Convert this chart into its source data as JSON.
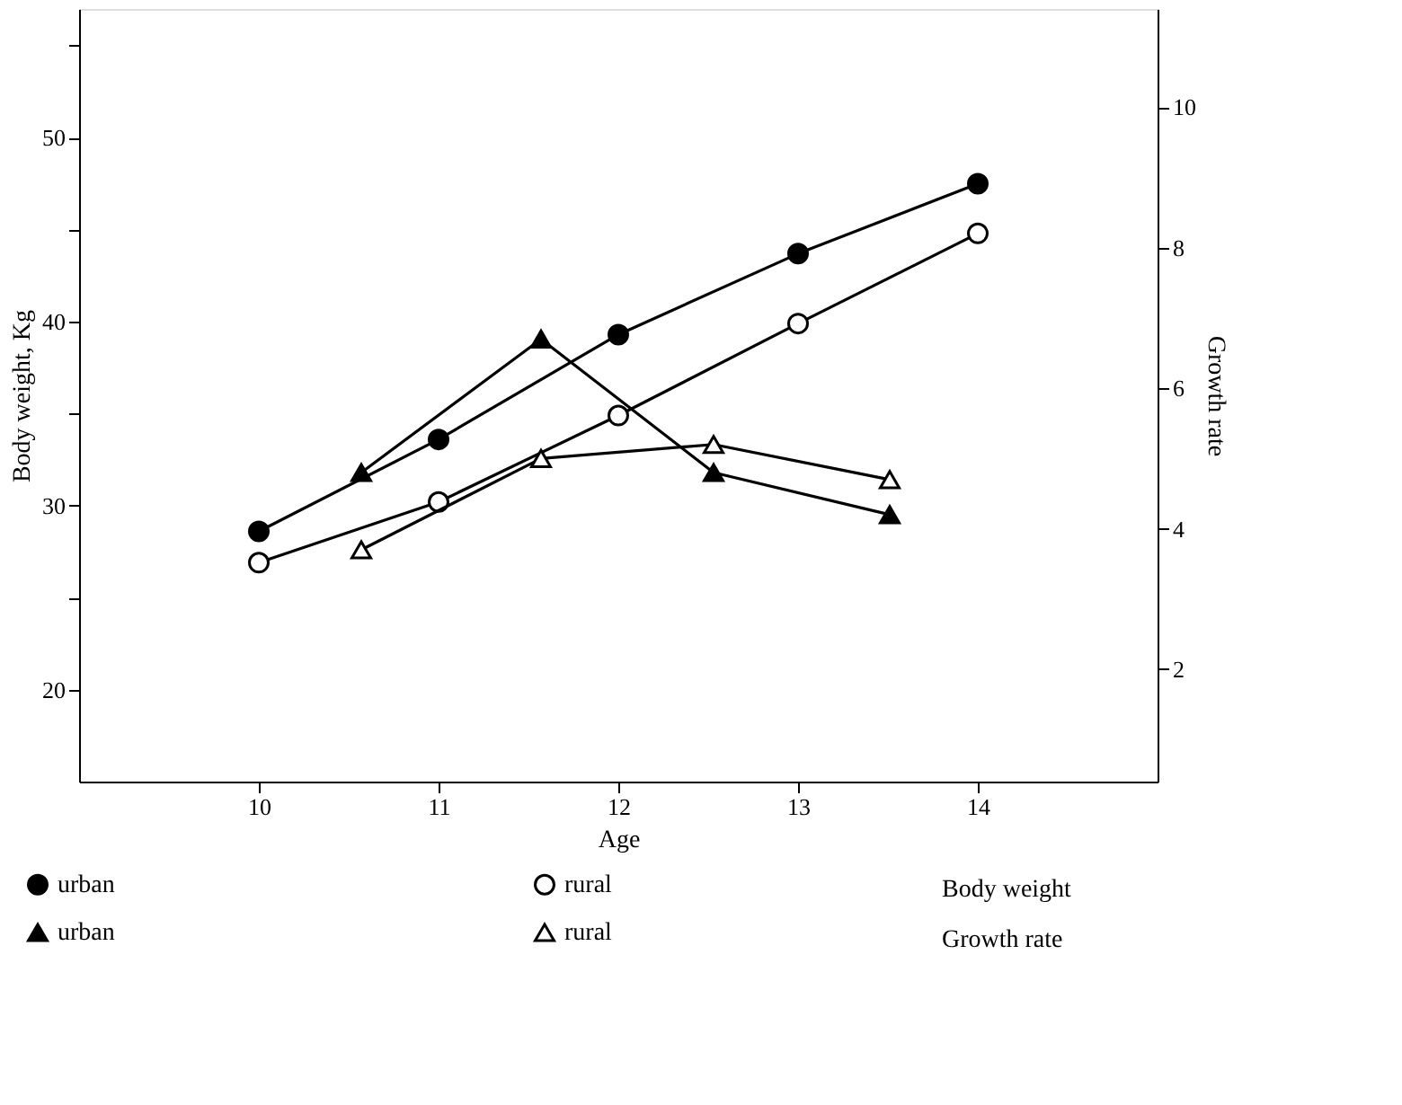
{
  "chart_data": {
    "type": "line",
    "xlabel": "Age",
    "ylabel": "Body weight, Kg",
    "y2label": "Growth rate",
    "x": [
      10,
      11,
      12,
      13,
      14
    ],
    "xlim": [
      9,
      15
    ],
    "xticks": [
      10,
      11,
      12,
      13,
      14
    ],
    "ylim": [
      15,
      57
    ],
    "yticks": [
      20,
      {
        "value": 25,
        "label": null
      },
      30,
      {
        "value": 35,
        "label": null
      },
      40,
      {
        "value": 45,
        "label": null
      },
      50,
      {
        "value": 55,
        "label": null
      }
    ],
    "y2lim": [
      0.4,
      11.4
    ],
    "y2ticks": [
      2,
      4,
      6,
      8,
      10
    ],
    "grid": false,
    "legend": "bottom",
    "line_style": "solid",
    "annotations": [
      "Body weight",
      "Growth rate"
    ],
    "series": [
      {
        "name": "urban",
        "color": "#000000",
        "marker": "circle",
        "values": [
          28.6,
          33.6,
          39.3,
          43.7,
          47.5
        ]
      },
      {
        "name": "rural",
        "color": "#000000",
        "marker": "circle",
        "values": [
          26.9,
          30.2,
          34.9,
          39.9,
          44.8
        ]
      },
      {
        "name": "urban",
        "color": "#000000",
        "marker": "triangle",
        "axis": "y2",
        "x": [
          10.57,
          11.57,
          12.53,
          13.51
        ],
        "values": [
          4.8,
          6.7,
          4.8,
          4.2
        ]
      },
      {
        "name": "rural",
        "color": "#000000",
        "marker": "triangle",
        "axis": "y2",
        "x": [
          10.57,
          11.57,
          12.53,
          13.51
        ],
        "values": [
          3.7,
          5.0,
          5.2,
          4.7
        ]
      }
    ]
  }
}
